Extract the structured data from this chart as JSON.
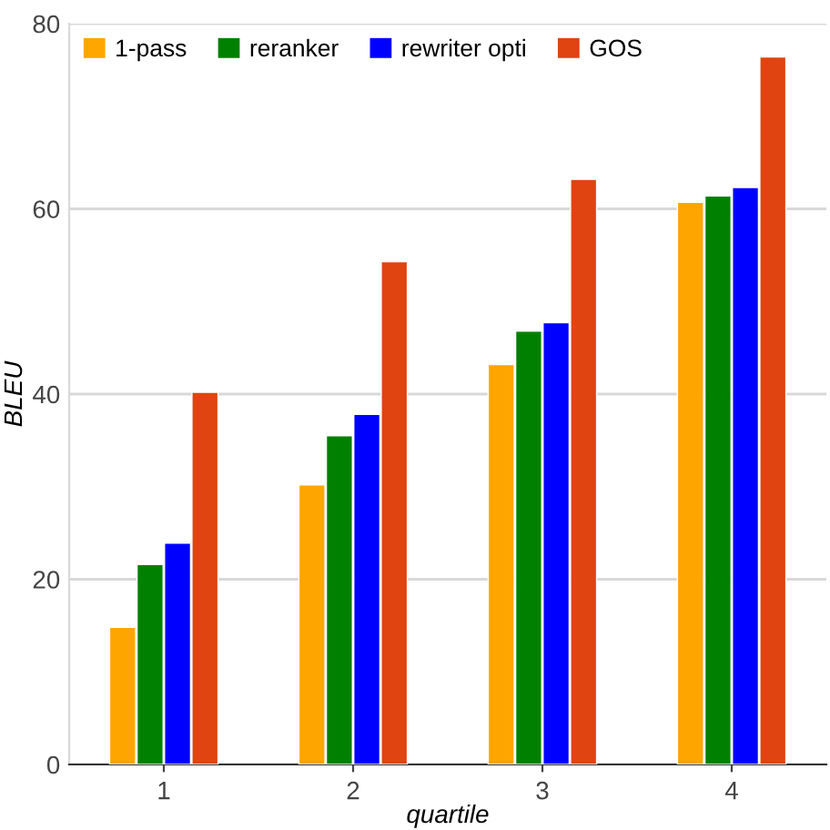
{
  "chart_data": {
    "type": "bar",
    "xlabel": "quartile",
    "ylabel": "BLEU",
    "categories": [
      "1",
      "2",
      "3",
      "4"
    ],
    "series": [
      {
        "name": "1-pass",
        "color": "#ffa500",
        "values": [
          14.8,
          30.2,
          43.2,
          60.7
        ]
      },
      {
        "name": "reranker",
        "color": "#008000",
        "values": [
          21.6,
          35.5,
          46.8,
          61.4
        ]
      },
      {
        "name": "rewriter opti",
        "color": "#0000ff",
        "values": [
          23.9,
          37.8,
          47.7,
          62.3
        ]
      },
      {
        "name": "GOS",
        "color": "#e04410",
        "values": [
          40.2,
          54.3,
          63.2,
          76.4
        ]
      }
    ],
    "ylim": [
      0,
      80
    ],
    "yticks": [
      0,
      20,
      40,
      60,
      80
    ],
    "grid": "y",
    "legend": "top left"
  }
}
